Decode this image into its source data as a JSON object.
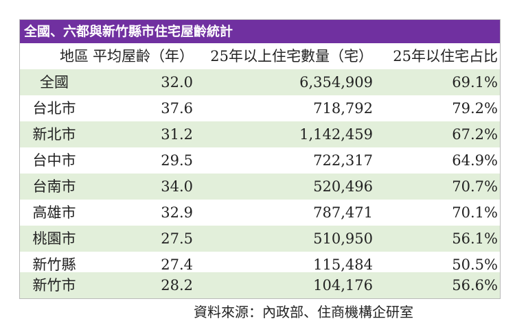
{
  "title": "全國、六都與新竹縣市住宅屋齡統計",
  "headers": {
    "region": "地區",
    "avg_age": "平均屋齡（年）",
    "count": "25年以上住宅數量（宅）",
    "pct": "25年以住宅占比"
  },
  "rows": [
    {
      "region": "全國",
      "avg_age": "32.0",
      "count": "6,354,909",
      "pct": "69.1%"
    },
    {
      "region": "台北市",
      "avg_age": "37.6",
      "count": "718,792",
      "pct": "79.2%"
    },
    {
      "region": "新北市",
      "avg_age": "31.2",
      "count": "1,142,459",
      "pct": "67.2%"
    },
    {
      "region": "台中市",
      "avg_age": "29.5",
      "count": "722,317",
      "pct": "64.9%"
    },
    {
      "region": "台南市",
      "avg_age": "34.0",
      "count": "520,496",
      "pct": "70.7%"
    },
    {
      "region": "高雄市",
      "avg_age": "32.9",
      "count": "787,471",
      "pct": "70.1%"
    },
    {
      "region": "桃園市",
      "avg_age": "27.5",
      "count": "510,950",
      "pct": "56.1%"
    },
    {
      "region": "新竹縣",
      "avg_age": "27.4",
      "count": "115,484",
      "pct": "50.5%"
    },
    {
      "region": "新竹市",
      "avg_age": "28.2",
      "count": "104,176",
      "pct": "56.6%"
    }
  ],
  "source": "資料來源：內政部、住商機構企研室",
  "colors": {
    "title_bg": "#7030a0",
    "row_shade": "#e2efda"
  }
}
